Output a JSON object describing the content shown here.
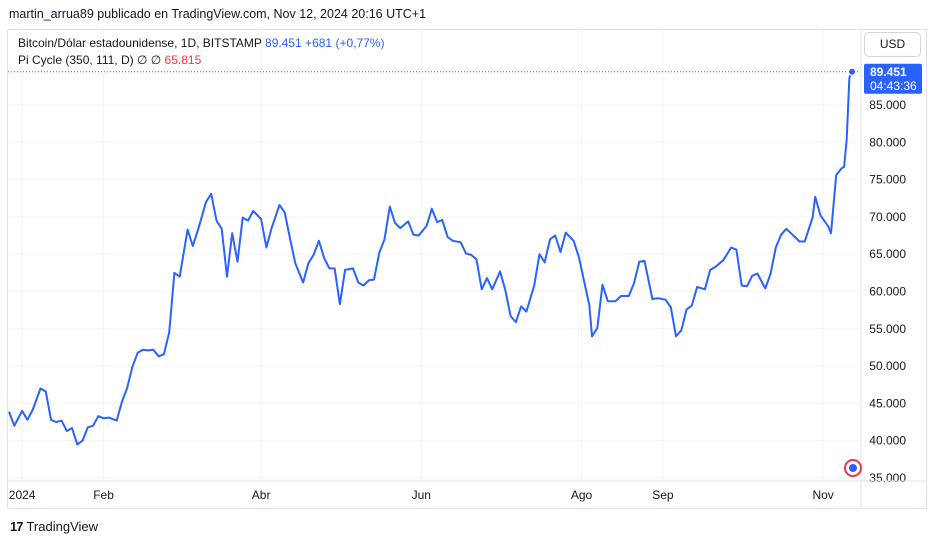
{
  "header": {
    "publisher_line": "martin_arrua89 publicado en TradingView.com, Nov 12, 2024 20:16 UTC+1"
  },
  "legend": {
    "symbol": "Bitcoin/Dólar estadounidense, 1D, BITSTAMP",
    "price": "89.451",
    "change": "+681 (+0,77%)",
    "indicator": "Pi Cycle (350, 111, D)",
    "indicator_flags": "∅ ∅",
    "indicator_value": "65.815"
  },
  "currency_button": "USD",
  "price_badge": {
    "price": "89.451",
    "countdown": "04:43:36"
  },
  "footer": {
    "brand": "TradingView",
    "logo": "17"
  },
  "colors": {
    "line": "#2962ff",
    "badge_bg": "#2962ff",
    "grid": "#f0f3fa"
  },
  "chart_data": {
    "type": "line",
    "title": "Bitcoin/Dólar estadounidense, 1D, BITSTAMP",
    "xlabel": "",
    "ylabel": "",
    "ylim": [
      35000,
      92000
    ],
    "grid": true,
    "yticks": [
      35000,
      40000,
      45000,
      50000,
      55000,
      60000,
      65000,
      70000,
      75000,
      80000,
      85000
    ],
    "ytick_labels": [
      "35.000",
      "40.000",
      "45.000",
      "50.000",
      "55.000",
      "60.000",
      "65.000",
      "70.000",
      "75.000",
      "80.000",
      "85.000"
    ],
    "xticks": [
      {
        "label": "2024",
        "date": "2024-01-01"
      },
      {
        "label": "Feb",
        "date": "2024-02-01"
      },
      {
        "label": "Abr",
        "date": "2024-04-01"
      },
      {
        "label": "Jun",
        "date": "2024-06-01"
      },
      {
        "label": "Ago",
        "date": "2024-08-01"
      },
      {
        "label": "Sep",
        "date": "2024-09-01"
      },
      {
        "label": "Nov",
        "date": "2024-11-01"
      }
    ],
    "series": [
      {
        "name": "BTC/USD",
        "points": [
          [
            "2023-12-27",
            43900
          ],
          [
            "2023-12-29",
            42000
          ],
          [
            "2024-01-01",
            44000
          ],
          [
            "2024-01-03",
            42800
          ],
          [
            "2024-01-05",
            44100
          ],
          [
            "2024-01-08",
            47000
          ],
          [
            "2024-01-10",
            46600
          ],
          [
            "2024-01-12",
            42800
          ],
          [
            "2024-01-14",
            42500
          ],
          [
            "2024-01-16",
            42700
          ],
          [
            "2024-01-18",
            41300
          ],
          [
            "2024-01-20",
            41700
          ],
          [
            "2024-01-22",
            39500
          ],
          [
            "2024-01-24",
            40000
          ],
          [
            "2024-01-26",
            41800
          ],
          [
            "2024-01-28",
            42000
          ],
          [
            "2024-01-30",
            43300
          ],
          [
            "2024-02-01",
            43000
          ],
          [
            "2024-02-03",
            43100
          ],
          [
            "2024-02-06",
            42700
          ],
          [
            "2024-02-08",
            45200
          ],
          [
            "2024-02-10",
            47100
          ],
          [
            "2024-02-12",
            49900
          ],
          [
            "2024-02-14",
            51800
          ],
          [
            "2024-02-16",
            52200
          ],
          [
            "2024-02-18",
            52100
          ],
          [
            "2024-02-20",
            52200
          ],
          [
            "2024-02-22",
            51300
          ],
          [
            "2024-02-24",
            51600
          ],
          [
            "2024-02-26",
            54500
          ],
          [
            "2024-02-28",
            62500
          ],
          [
            "2024-03-01",
            62000
          ],
          [
            "2024-03-04",
            68300
          ],
          [
            "2024-03-06",
            66100
          ],
          [
            "2024-03-08",
            68300
          ],
          [
            "2024-03-11",
            72000
          ],
          [
            "2024-03-13",
            73100
          ],
          [
            "2024-03-15",
            69500
          ],
          [
            "2024-03-17",
            68400
          ],
          [
            "2024-03-19",
            62000
          ],
          [
            "2024-03-21",
            67800
          ],
          [
            "2024-03-23",
            64000
          ],
          [
            "2024-03-25",
            69900
          ],
          [
            "2024-03-27",
            69500
          ],
          [
            "2024-03-29",
            70800
          ],
          [
            "2024-04-01",
            69700
          ],
          [
            "2024-04-03",
            65900
          ],
          [
            "2024-04-05",
            68500
          ],
          [
            "2024-04-08",
            71600
          ],
          [
            "2024-04-10",
            70600
          ],
          [
            "2024-04-12",
            67100
          ],
          [
            "2024-04-14",
            63800
          ],
          [
            "2024-04-17",
            61200
          ],
          [
            "2024-04-19",
            63800
          ],
          [
            "2024-04-21",
            64900
          ],
          [
            "2024-04-23",
            66800
          ],
          [
            "2024-04-25",
            64500
          ],
          [
            "2024-04-27",
            63100
          ],
          [
            "2024-04-29",
            63100
          ],
          [
            "2024-05-01",
            58300
          ],
          [
            "2024-05-03",
            62900
          ],
          [
            "2024-05-06",
            63100
          ],
          [
            "2024-05-08",
            61200
          ],
          [
            "2024-05-10",
            60800
          ],
          [
            "2024-05-12",
            61500
          ],
          [
            "2024-05-14",
            61600
          ],
          [
            "2024-05-16",
            65200
          ],
          [
            "2024-05-18",
            67000
          ],
          [
            "2024-05-20",
            71400
          ],
          [
            "2024-05-22",
            69200
          ],
          [
            "2024-05-24",
            68500
          ],
          [
            "2024-05-27",
            69400
          ],
          [
            "2024-05-29",
            67600
          ],
          [
            "2024-05-31",
            67500
          ],
          [
            "2024-06-03",
            68800
          ],
          [
            "2024-06-05",
            71100
          ],
          [
            "2024-06-07",
            69300
          ],
          [
            "2024-06-09",
            69600
          ],
          [
            "2024-06-11",
            67300
          ],
          [
            "2024-06-13",
            66800
          ],
          [
            "2024-06-16",
            66600
          ],
          [
            "2024-06-18",
            65100
          ],
          [
            "2024-06-20",
            64900
          ],
          [
            "2024-06-22",
            64300
          ],
          [
            "2024-06-24",
            60300
          ],
          [
            "2024-06-26",
            61800
          ],
          [
            "2024-06-28",
            60300
          ],
          [
            "2024-07-01",
            62700
          ],
          [
            "2024-07-03",
            60200
          ],
          [
            "2024-07-05",
            56700
          ],
          [
            "2024-07-07",
            55900
          ],
          [
            "2024-07-09",
            58000
          ],
          [
            "2024-07-11",
            57300
          ],
          [
            "2024-07-14",
            60800
          ],
          [
            "2024-07-16",
            65000
          ],
          [
            "2024-07-18",
            63900
          ],
          [
            "2024-07-20",
            67000
          ],
          [
            "2024-07-22",
            67500
          ],
          [
            "2024-07-24",
            65300
          ],
          [
            "2024-07-26",
            67900
          ],
          [
            "2024-07-29",
            66800
          ],
          [
            "2024-07-31",
            64600
          ],
          [
            "2024-08-02",
            61400
          ],
          [
            "2024-08-04",
            58100
          ],
          [
            "2024-08-05",
            54000
          ],
          [
            "2024-08-07",
            55100
          ],
          [
            "2024-08-09",
            60900
          ],
          [
            "2024-08-11",
            58700
          ],
          [
            "2024-08-14",
            58700
          ],
          [
            "2024-08-16",
            59400
          ],
          [
            "2024-08-19",
            59400
          ],
          [
            "2024-08-21",
            61100
          ],
          [
            "2024-08-23",
            64000
          ],
          [
            "2024-08-25",
            64100
          ],
          [
            "2024-08-28",
            59000
          ],
          [
            "2024-08-30",
            59100
          ],
          [
            "2024-09-02",
            58900
          ],
          [
            "2024-09-04",
            57900
          ],
          [
            "2024-09-06",
            54000
          ],
          [
            "2024-09-08",
            54800
          ],
          [
            "2024-09-10",
            57600
          ],
          [
            "2024-09-12",
            58100
          ],
          [
            "2024-09-14",
            60600
          ],
          [
            "2024-09-17",
            60300
          ],
          [
            "2024-09-19",
            62900
          ],
          [
            "2024-09-21",
            63300
          ],
          [
            "2024-09-24",
            64200
          ],
          [
            "2024-09-27",
            65900
          ],
          [
            "2024-09-29",
            65600
          ],
          [
            "2024-10-01",
            60800
          ],
          [
            "2024-10-03",
            60700
          ],
          [
            "2024-10-05",
            62100
          ],
          [
            "2024-10-07",
            62400
          ],
          [
            "2024-10-10",
            60400
          ],
          [
            "2024-10-12",
            62400
          ],
          [
            "2024-10-14",
            65900
          ],
          [
            "2024-10-16",
            67600
          ],
          [
            "2024-10-18",
            68400
          ],
          [
            "2024-10-21",
            67400
          ],
          [
            "2024-10-23",
            66700
          ],
          [
            "2024-10-25",
            66700
          ],
          [
            "2024-10-28",
            69900
          ],
          [
            "2024-10-29",
            72700
          ],
          [
            "2024-10-31",
            70200
          ],
          [
            "2024-11-03",
            68700
          ],
          [
            "2024-11-04",
            67800
          ],
          [
            "2024-11-06",
            75600
          ],
          [
            "2024-11-08",
            76500
          ],
          [
            "2024-11-09",
            76700
          ],
          [
            "2024-11-10",
            80400
          ],
          [
            "2024-11-11",
            88700
          ],
          [
            "2024-11-12",
            89451
          ]
        ]
      }
    ]
  }
}
